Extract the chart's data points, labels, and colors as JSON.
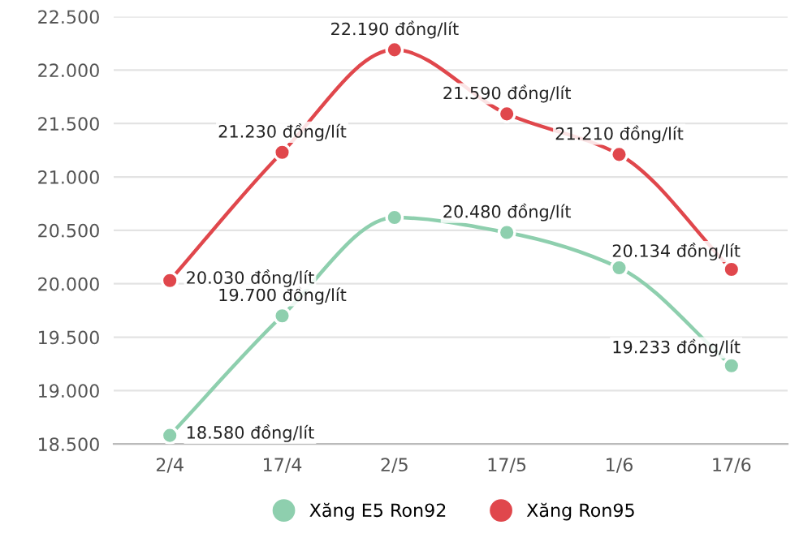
{
  "chart_data": {
    "type": "line",
    "categories": [
      "2/4",
      "17/4",
      "2/5",
      "17/5",
      "1/6",
      "17/6"
    ],
    "series": [
      {
        "name": "Xăng E5 Ron92",
        "color": "#8ecfae",
        "values": [
          18580,
          19700,
          20620,
          20480,
          20150,
          19233
        ],
        "value_labels": [
          "18.580 đồng/lít",
          "19.700 đồng/lít",
          null,
          "20.480 đồng/lít",
          null,
          "19.233 đồng/lít"
        ]
      },
      {
        "name": "Xăng Ron95",
        "color": "#e0474c",
        "values": [
          20030,
          21230,
          22190,
          21590,
          21210,
          20134
        ],
        "value_labels": [
          "20.030 đồng/lít",
          "21.230 đồng/lít",
          "22.190 đồng/lít",
          "21.590 đồng/lít",
          "21.210 đồng/lít",
          "20.134 đồng/lít"
        ]
      }
    ],
    "ylim": [
      18500,
      22500
    ],
    "yticks": [
      {
        "value": 18500,
        "label": "18.500"
      },
      {
        "value": 19000,
        "label": "19.000"
      },
      {
        "value": 19500,
        "label": "19.500"
      },
      {
        "value": 20000,
        "label": "20.000"
      },
      {
        "value": 20500,
        "label": "20.500"
      },
      {
        "value": 21000,
        "label": "21.000"
      },
      {
        "value": 21500,
        "label": "21.500"
      },
      {
        "value": 22000,
        "label": "22.000"
      },
      {
        "value": 22500,
        "label": "22.500"
      }
    ],
    "grid": "y",
    "legend": "bottom",
    "marker": "circle",
    "line_style": "solid"
  }
}
